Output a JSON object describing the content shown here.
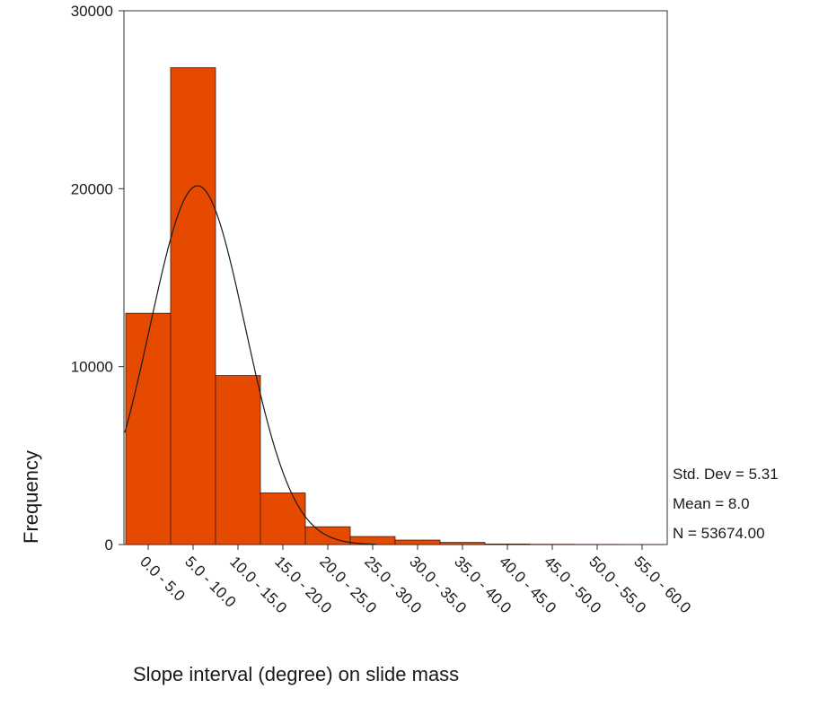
{
  "chart_data": {
    "type": "bar",
    "title": "",
    "xlabel": "Slope interval (degree) on slide mass",
    "ylabel": "Frequency",
    "categories": [
      "0.0 - 5.0",
      "5.0 - 10.0",
      "10.0 - 15.0",
      "15.0 - 20.0",
      "20.0 - 25.0",
      "25.0 - 30.0",
      "30.0 - 35.0",
      "35.0 - 40.0",
      "40.0 - 45.0",
      "45.0 - 50.0",
      "50.0 - 55.0",
      "55.0 - 60.0"
    ],
    "values": [
      13000,
      26800,
      9500,
      2900,
      1000,
      450,
      250,
      120,
      30,
      15,
      8,
      5
    ],
    "ylim": [
      0,
      30000
    ],
    "yticks": [
      0,
      10000,
      20000,
      30000
    ],
    "grid": false,
    "normal_curve": {
      "mean": 8.0,
      "std_dev": 5.31,
      "n": 53674
    },
    "stats": [
      {
        "label": "Std. Dev",
        "value": "5.31"
      },
      {
        "label": "Mean",
        "value": "8.0"
      },
      {
        "label": "N",
        "value": "53674.00"
      }
    ],
    "colors": {
      "bar_fill": "#e64a00",
      "bar_stroke": "#3a1a10",
      "curve": "#1a1a1a",
      "frame": "#333333"
    }
  }
}
